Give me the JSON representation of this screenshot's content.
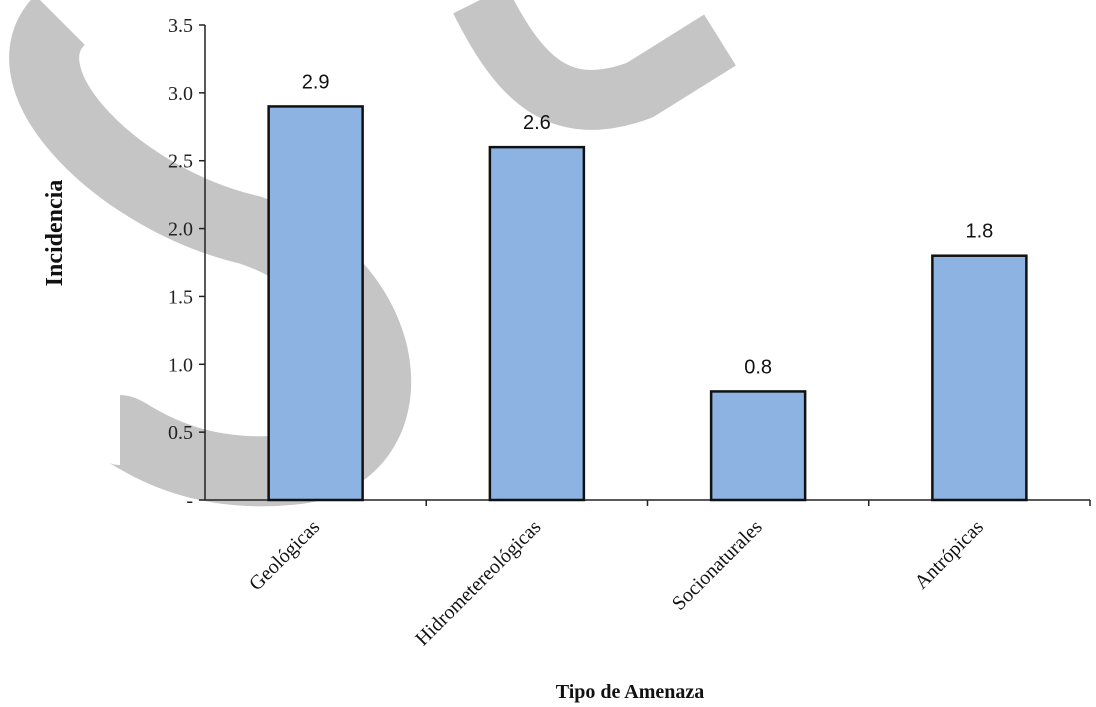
{
  "chart_data": {
    "type": "bar",
    "categories": [
      "Geológicas",
      "Hidrometereológicas",
      "Socionaturales",
      "Antrópicas"
    ],
    "values": [
      2.9,
      2.6,
      0.8,
      1.8
    ],
    "data_labels": [
      "2.9",
      "2.6",
      "0.8",
      "1.8"
    ],
    "xlabel": "Tipo de Amenaza",
    "ylabel": "Incidencia",
    "ylim": [
      0,
      3.5
    ],
    "yticks": [
      0,
      0.5,
      1.0,
      1.5,
      2.0,
      2.5,
      3.0,
      3.5
    ],
    "ytick_labels": [
      "-",
      "0.5",
      "1.0",
      "1.5",
      "2.0",
      "2.5",
      "3.0",
      "3.5"
    ],
    "grid": false,
    "bar_color": "#8db3e2",
    "watermark_color": "#8c8c8c"
  }
}
